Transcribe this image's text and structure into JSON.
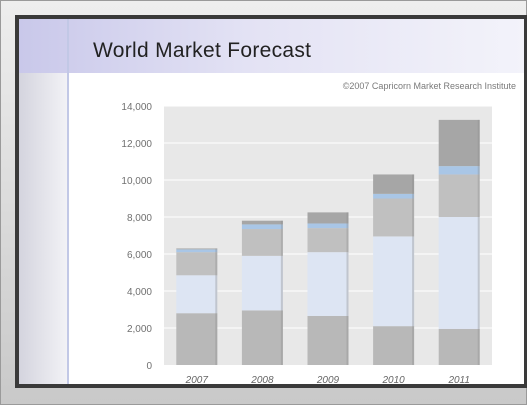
{
  "chart_data": {
    "type": "bar",
    "stacked": true,
    "title": "World Market Forecast",
    "subtitle": "©2007 Capricorn Market Research Institute",
    "xlabel": "",
    "ylabel": "",
    "ylim": [
      0,
      14000
    ],
    "yticks": [
      "0",
      "2,000",
      "4,000",
      "6,000",
      "8,000",
      "10,000",
      "12,000",
      "14,000"
    ],
    "grid": true,
    "categories": [
      "2007",
      "2008",
      "2009",
      "2010",
      "2011"
    ],
    "series": [
      {
        "color": "#b8b8b8",
        "values": [
          2800,
          2950,
          2650,
          2100,
          1950
        ]
      },
      {
        "color": "#dde5f3",
        "values": [
          2050,
          2950,
          3450,
          4850,
          6050
        ]
      },
      {
        "color": "#c0c0c0",
        "values": [
          1250,
          1450,
          1300,
          2050,
          2300
        ]
      },
      {
        "color": "#a9c6e6",
        "values": [
          150,
          250,
          250,
          250,
          450
        ]
      },
      {
        "color": "#a6a6a6",
        "values": [
          50,
          200,
          600,
          1050,
          2500
        ]
      }
    ],
    "plot_bg": "#e8e8e8"
  }
}
